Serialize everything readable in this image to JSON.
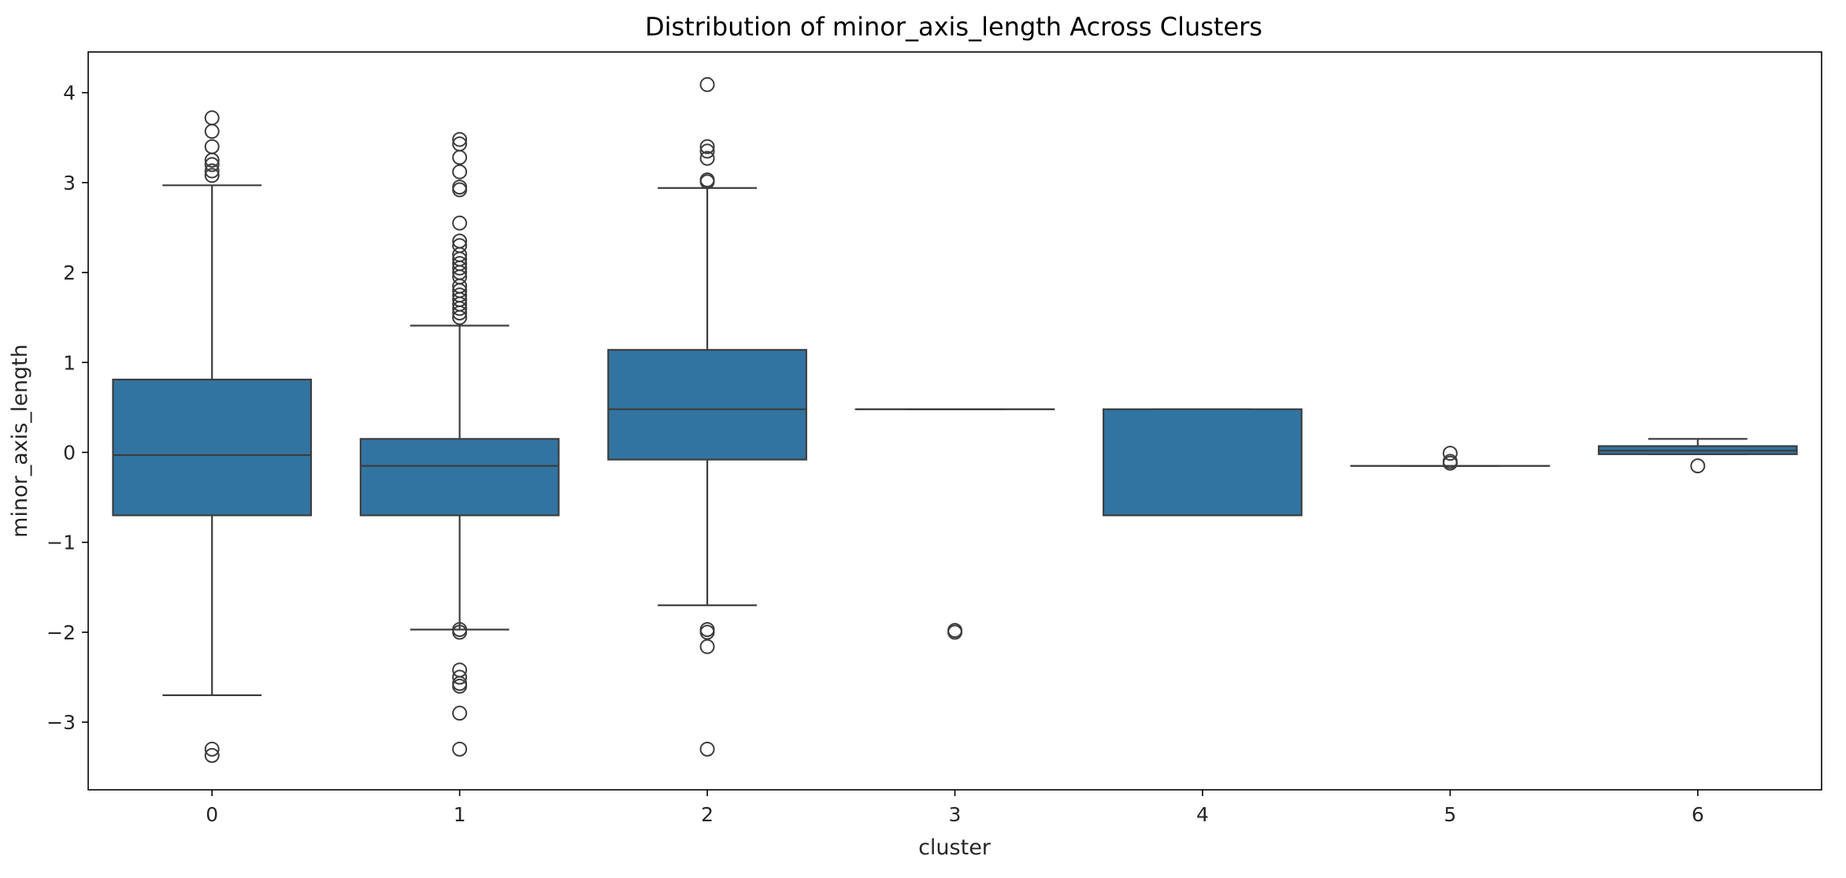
{
  "chart_data": {
    "type": "box",
    "title": "Distribution of minor_axis_length Across Clusters",
    "xlabel": "cluster",
    "ylabel": "minor_axis_length",
    "ylim": [
      -3.75,
      4.45
    ],
    "yticks": [
      -3,
      -2,
      -1,
      0,
      1,
      2,
      3,
      4
    ],
    "ytick_labels": [
      "−3",
      "−2",
      "−1",
      "0",
      "1",
      "2",
      "3",
      "4"
    ],
    "categories": [
      "0",
      "1",
      "2",
      "3",
      "4",
      "5",
      "6"
    ],
    "box_color": "#3274a1",
    "line_color": "#3d3d3d",
    "grid": false,
    "boxes": [
      {
        "category": "0",
        "whisker_low": -2.7,
        "q1": -0.7,
        "median": -0.03,
        "q3": 0.81,
        "whisker_high": 2.97,
        "outliers": [
          3.72,
          3.57,
          3.4,
          3.25,
          3.2,
          3.13,
          3.08,
          -3.3,
          -3.37
        ]
      },
      {
        "category": "1",
        "whisker_low": -1.97,
        "q1": -0.7,
        "median": -0.15,
        "q3": 0.15,
        "whisker_high": 1.41,
        "outliers": [
          3.48,
          3.43,
          3.28,
          3.12,
          2.95,
          2.92,
          2.55,
          2.35,
          2.3,
          2.2,
          2.15,
          2.1,
          2.05,
          2.0,
          1.95,
          1.85,
          1.8,
          1.75,
          1.7,
          1.65,
          1.6,
          1.55,
          1.5,
          -1.97,
          -2.0,
          -2.42,
          -2.5,
          -2.57,
          -2.6,
          -2.9,
          -3.3
        ]
      },
      {
        "category": "2",
        "whisker_low": -1.7,
        "q1": -0.08,
        "median": 0.48,
        "q3": 1.14,
        "whisker_high": 2.94,
        "outliers": [
          4.09,
          3.4,
          3.35,
          3.27,
          3.03,
          3.01,
          -1.97,
          -2.0,
          -2.16,
          -3.3
        ]
      },
      {
        "category": "3",
        "whisker_low": 0.48,
        "q1": 0.48,
        "median": 0.48,
        "q3": 0.48,
        "whisker_high": 0.48,
        "outliers": [
          -1.98,
          -2.0
        ]
      },
      {
        "category": "4",
        "whisker_low": -0.7,
        "q1": -0.7,
        "median": -0.7,
        "q3": 0.48,
        "whisker_high": 0.48,
        "outliers": []
      },
      {
        "category": "5",
        "whisker_low": -0.15,
        "q1": -0.15,
        "median": -0.15,
        "q3": -0.15,
        "whisker_high": -0.15,
        "outliers": [
          -0.01,
          -0.1,
          -0.12
        ]
      },
      {
        "category": "6",
        "whisker_low": -0.02,
        "q1": -0.02,
        "median": 0.02,
        "q3": 0.07,
        "whisker_high": 0.15,
        "outliers": [
          -0.15
        ]
      }
    ]
  }
}
